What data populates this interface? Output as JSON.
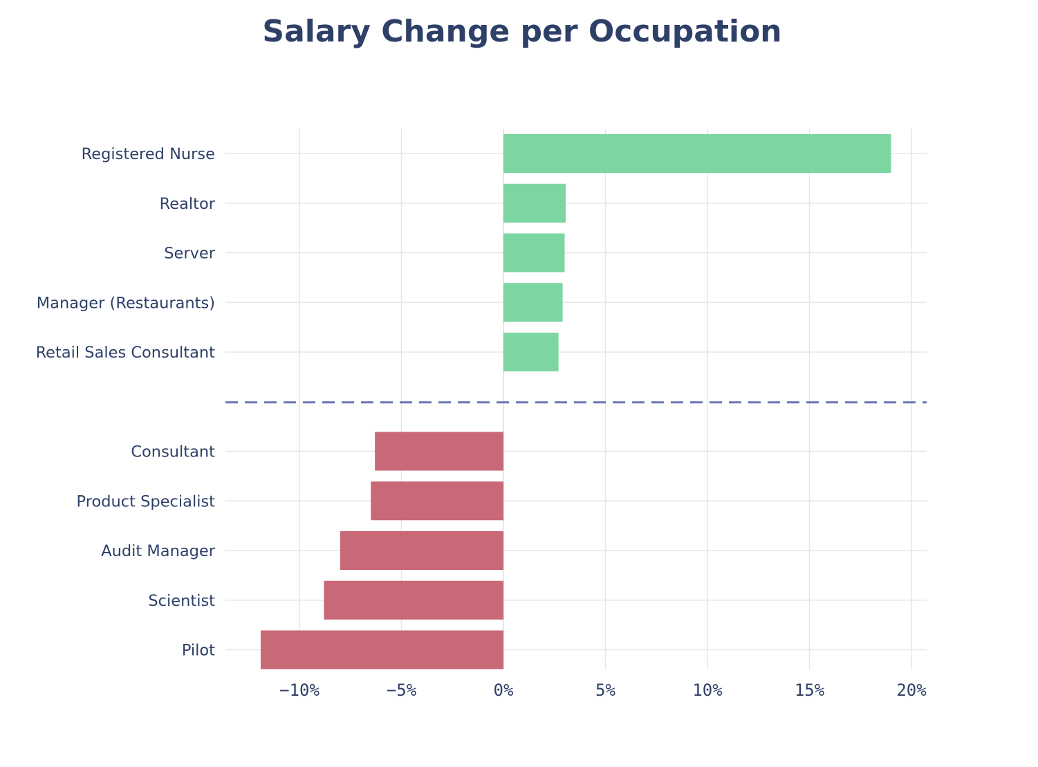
{
  "colors": {
    "positive": "#7dd6a2",
    "negative": "#c96978",
    "divider": "#6b74b4",
    "text": "#2e4068",
    "grid": "#e6e6e6"
  },
  "chart_data": {
    "type": "bar",
    "orientation": "horizontal",
    "title": "Salary Change per Occupation",
    "xlabel": "",
    "ylabel": "",
    "xlim": [
      -13.6,
      20.8
    ],
    "x_ticks": [
      -10,
      -5,
      0,
      5,
      10,
      15,
      20
    ],
    "x_tick_labels": [
      "−10%",
      "−5%",
      "0%",
      "5%",
      "10%",
      "15%",
      "20%"
    ],
    "grid": true,
    "legend": "none",
    "groups": [
      {
        "name": "increase",
        "categories": [
          "Registered Nurse",
          "Realtor",
          "Server",
          "Manager (Restaurants)",
          "Retail Sales Consultant"
        ],
        "values": [
          19.0,
          3.05,
          3.0,
          2.9,
          2.7
        ]
      },
      {
        "name": "decrease",
        "categories": [
          "Consultant",
          "Product Specialist",
          "Audit Manager",
          "Scientist",
          "Pilot"
        ],
        "values": [
          -6.3,
          -6.5,
          -8.0,
          -8.8,
          -11.9
        ]
      }
    ],
    "divider": "dashed line between increases and decreases"
  }
}
